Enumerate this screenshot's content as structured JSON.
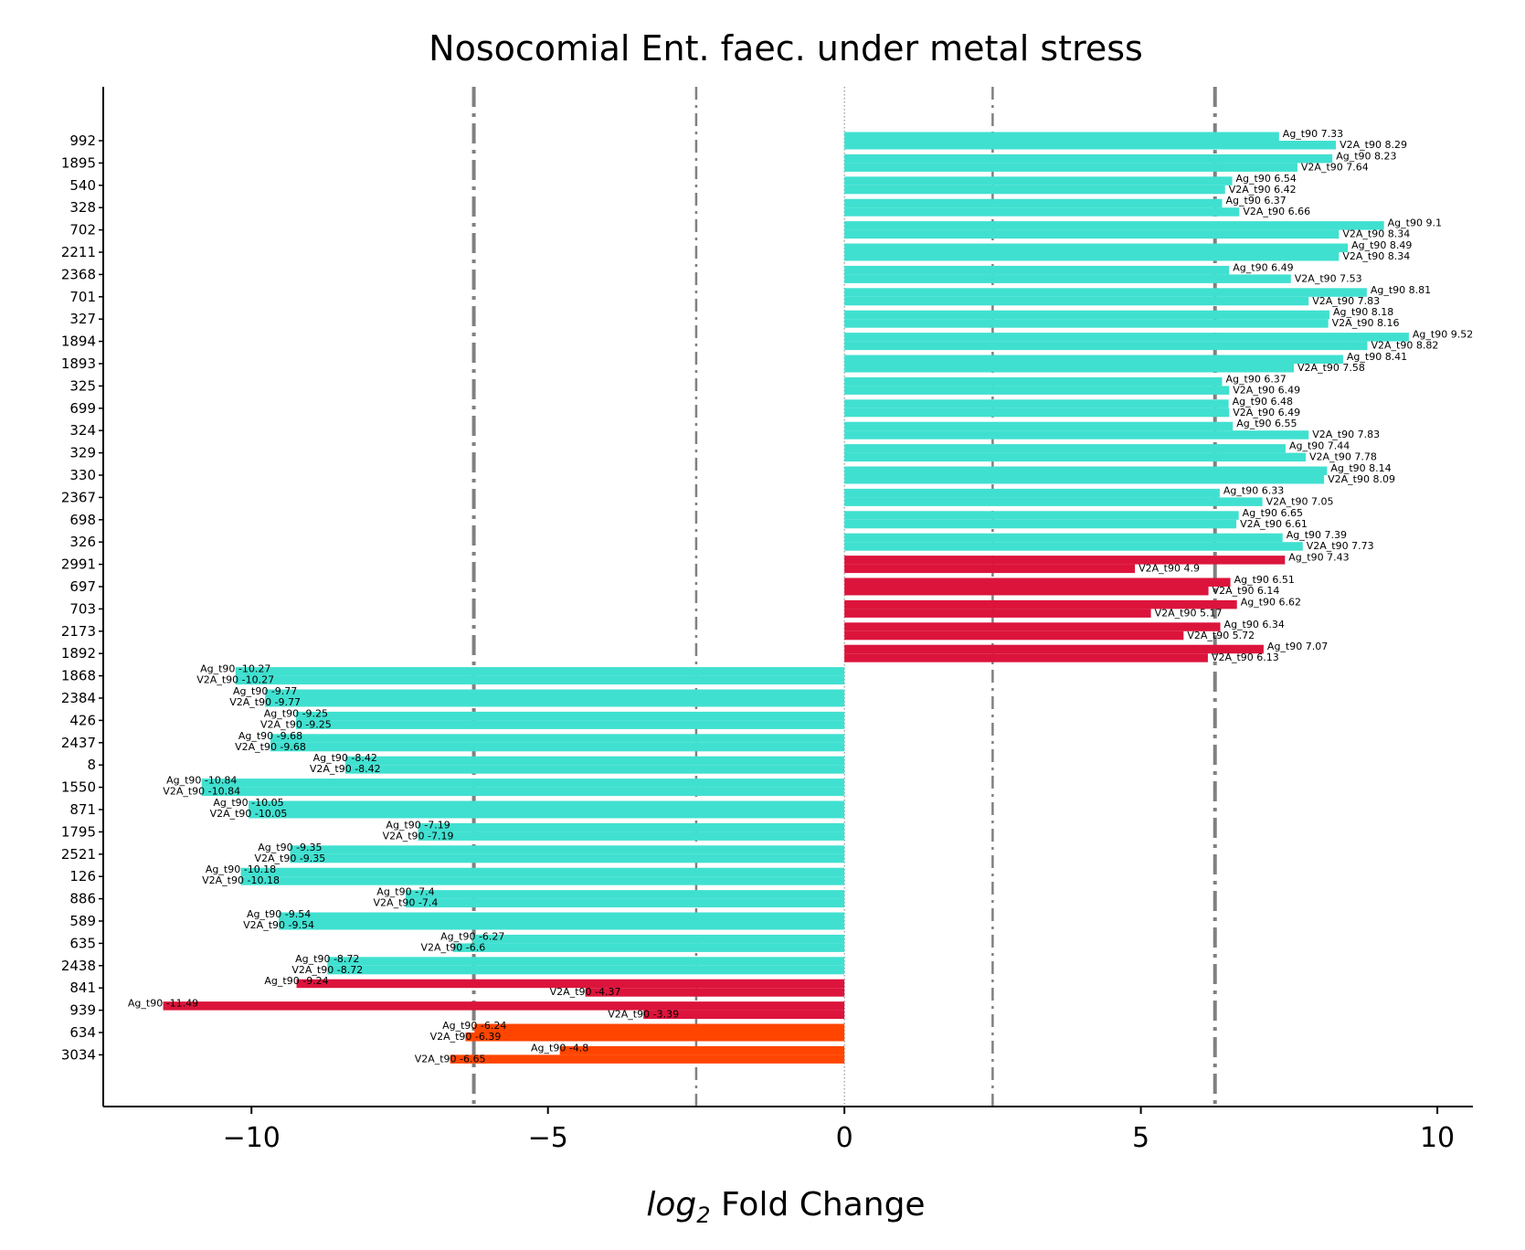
{
  "chart_data": {
    "type": "bar",
    "orientation": "horizontal",
    "title": "Nosocomial Ent. faec. under metal stress",
    "xlabel_italic": "log",
    "xlabel_sub": "2",
    "xlabel_rest": " Fold Change",
    "xlim": [
      -12.5,
      10.6
    ],
    "xticks": [
      -10,
      -5,
      0,
      5,
      10
    ],
    "xtick_labels": [
      "−10",
      "−5",
      "0",
      "5",
      "10"
    ],
    "vlines": [
      {
        "x": -6.25,
        "style": "dashdot-thick"
      },
      {
        "x": -2.5,
        "style": "dashdot-thin"
      },
      {
        "x": 0,
        "style": "dotted"
      },
      {
        "x": 2.5,
        "style": "dashdot-thin"
      },
      {
        "x": 6.25,
        "style": "dashdot-thick"
      }
    ],
    "colors": {
      "teal": "#40e0d0",
      "red": "#dc143c",
      "orange": "#ff4500"
    },
    "categories": [
      "992",
      "1895",
      "540",
      "328",
      "702",
      "2211",
      "2368",
      "701",
      "327",
      "1894",
      "1893",
      "325",
      "699",
      "324",
      "329",
      "330",
      "2367",
      "698",
      "326",
      "2991",
      "697",
      "703",
      "2173",
      "1892",
      "1868",
      "2384",
      "426",
      "2437",
      "8",
      "1550",
      "871",
      "1795",
      "2521",
      "126",
      "886",
      "589",
      "635",
      "2438",
      "841",
      "939",
      "634",
      "3034"
    ],
    "bar_colors": [
      "teal",
      "teal",
      "teal",
      "teal",
      "teal",
      "teal",
      "teal",
      "teal",
      "teal",
      "teal",
      "teal",
      "teal",
      "teal",
      "teal",
      "teal",
      "teal",
      "teal",
      "teal",
      "teal",
      "red",
      "red",
      "red",
      "red",
      "red",
      "teal",
      "teal",
      "teal",
      "teal",
      "teal",
      "teal",
      "teal",
      "teal",
      "teal",
      "teal",
      "teal",
      "teal",
      "teal",
      "teal",
      "red",
      "red",
      "orange",
      "orange"
    ],
    "series": [
      {
        "name": "Ag_t90",
        "values": [
          7.33,
          8.23,
          6.54,
          6.37,
          9.1,
          8.49,
          6.49,
          8.81,
          8.18,
          9.52,
          8.41,
          6.37,
          6.48,
          6.55,
          7.44,
          8.14,
          6.33,
          6.65,
          7.39,
          7.43,
          6.51,
          6.62,
          6.34,
          7.07,
          -10.27,
          -9.77,
          -9.25,
          -9.68,
          -8.42,
          -10.84,
          -10.05,
          -7.19,
          -9.35,
          -10.18,
          -7.4,
          -9.54,
          -6.27,
          -8.72,
          -9.24,
          -11.49,
          -6.24,
          -4.8
        ]
      },
      {
        "name": "V2A_t90",
        "values": [
          8.29,
          7.64,
          6.42,
          6.66,
          8.34,
          8.34,
          7.53,
          7.83,
          8.16,
          8.82,
          7.58,
          6.49,
          6.49,
          7.83,
          7.78,
          8.09,
          7.05,
          6.61,
          7.73,
          4.9,
          6.14,
          5.17,
          5.72,
          6.13,
          -10.27,
          -9.77,
          -9.25,
          -9.68,
          -8.42,
          -10.84,
          -10.05,
          -7.19,
          -9.35,
          -10.18,
          -7.4,
          -9.54,
          -6.6,
          -8.72,
          -4.37,
          -3.39,
          -6.39,
          -6.65
        ]
      }
    ],
    "annotations": [
      [
        "Ag_t90 7.33",
        "V2A_t90 8.29"
      ],
      [
        "Ag_t90 8.23",
        "V2A_t90 7.64"
      ],
      [
        "Ag_t90 6.54",
        "V2A_t90 6.42"
      ],
      [
        "Ag_t90 6.37",
        "V2A_t90 6.66"
      ],
      [
        "Ag_t90 9.1",
        "V2A_t90 8.34"
      ],
      [
        "Ag_t90 8.49",
        "V2A_t90 8.34"
      ],
      [
        "Ag_t90 6.49",
        "V2A_t90 7.53"
      ],
      [
        "Ag_t90 8.81",
        "V2A_t90 7.83"
      ],
      [
        "Ag_t90 8.18",
        "V2A_t90 8.16"
      ],
      [
        "Ag_t90 9.52",
        "V2A_t90 8.82"
      ],
      [
        "Ag_t90 8.41",
        "V2A_t90 7.58"
      ],
      [
        "Ag_t90 6.37",
        "V2A_t90 6.49"
      ],
      [
        "Ag_t90 6.48",
        "V2A_t90 6.49"
      ],
      [
        "Ag_t90 6.55",
        "V2A_t90 7.83"
      ],
      [
        "Ag_t90 7.44",
        "V2A_t90 7.78"
      ],
      [
        "Ag_t90 8.14",
        "V2A_t90 8.09"
      ],
      [
        "Ag_t90 6.33",
        "V2A_t90 7.05"
      ],
      [
        "Ag_t90 6.65",
        "V2A_t90 6.61"
      ],
      [
        "Ag_t90 7.39",
        "V2A_t90 7.73"
      ],
      [
        "Ag_t90 7.43",
        "V2A_t90 4.9"
      ],
      [
        "Ag_t90 6.51",
        "V2A_t90 6.14"
      ],
      [
        "Ag_t90 6.62",
        "V2A_t90 5.17"
      ],
      [
        "Ag_t90 6.34",
        "V2A_t90 5.72"
      ],
      [
        "Ag_t90 7.07",
        "V2A_t90 6.13"
      ],
      [
        "Ag_t90 -10.27",
        "V2A_t90 -10.27"
      ],
      [
        "Ag_t90 -9.77",
        "V2A_t90 -9.77"
      ],
      [
        "Ag_t90 -9.25",
        "V2A_t90 -9.25"
      ],
      [
        "Ag_t90 -9.68",
        "V2A_t90 -9.68"
      ],
      [
        "Ag_t90 -8.42",
        "V2A_t90 -8.42"
      ],
      [
        "Ag_t90 -10.84",
        "V2A_t90 -10.84"
      ],
      [
        "Ag_t90 -10.05",
        "V2A_t90 -10.05"
      ],
      [
        "Ag_t90 -7.19",
        "V2A_t90 -7.19"
      ],
      [
        "Ag_t90 -9.35",
        "V2A_t90 -9.35"
      ],
      [
        "Ag_t90 -10.18",
        "V2A_t90 -10.18"
      ],
      [
        "Ag_t90 -7.4",
        "V2A_t90 -7.4"
      ],
      [
        "Ag_t90 -9.54",
        "V2A_t90 -9.54"
      ],
      [
        "Ag_t90 -6.27",
        "V2A_t90 -6.6"
      ],
      [
        "Ag_t90 -8.72",
        "V2A_t90 -8.72"
      ],
      [
        "Ag_t90 -9.24",
        "V2A_t90 -4.37"
      ],
      [
        "Ag_t90 -11.49",
        "V2A_t90 -3.39"
      ],
      [
        "Ag_t90 -6.24",
        "V2A_t90 -6.39"
      ],
      [
        "Ag_t90 -4.8",
        "V2A_t90 -6.65"
      ]
    ]
  }
}
